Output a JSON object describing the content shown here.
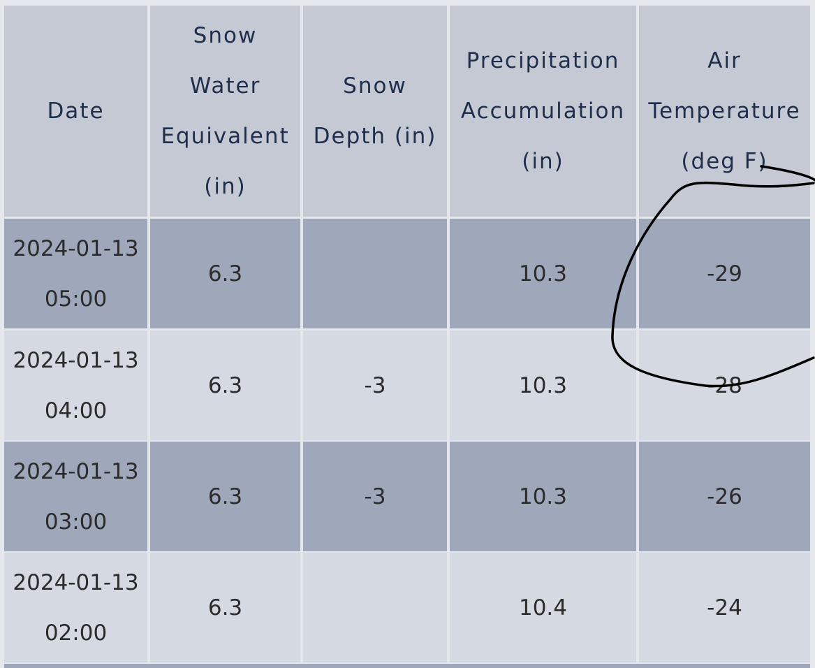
{
  "table": {
    "headers": [
      "Date",
      "Snow Water Equivalent (in)",
      "Snow Depth (in)",
      "Precipitation Accumulation (in)",
      "Air Temperature (deg F)"
    ],
    "rows": [
      [
        [
          "2024-01-13",
          "05:00"
        ],
        "6.3",
        null,
        "10.3",
        "-29"
      ],
      [
        [
          "2024-01-13",
          "04:00"
        ],
        "6.3",
        "-3",
        "10.3",
        "-28"
      ],
      [
        [
          "2024-01-13",
          "03:00"
        ],
        "6.3",
        "-3",
        "10.3",
        "-26"
      ],
      [
        [
          "2024-01-13",
          "02:00"
        ],
        "6.3",
        null,
        "10.4",
        "-24"
      ]
    ]
  }
}
